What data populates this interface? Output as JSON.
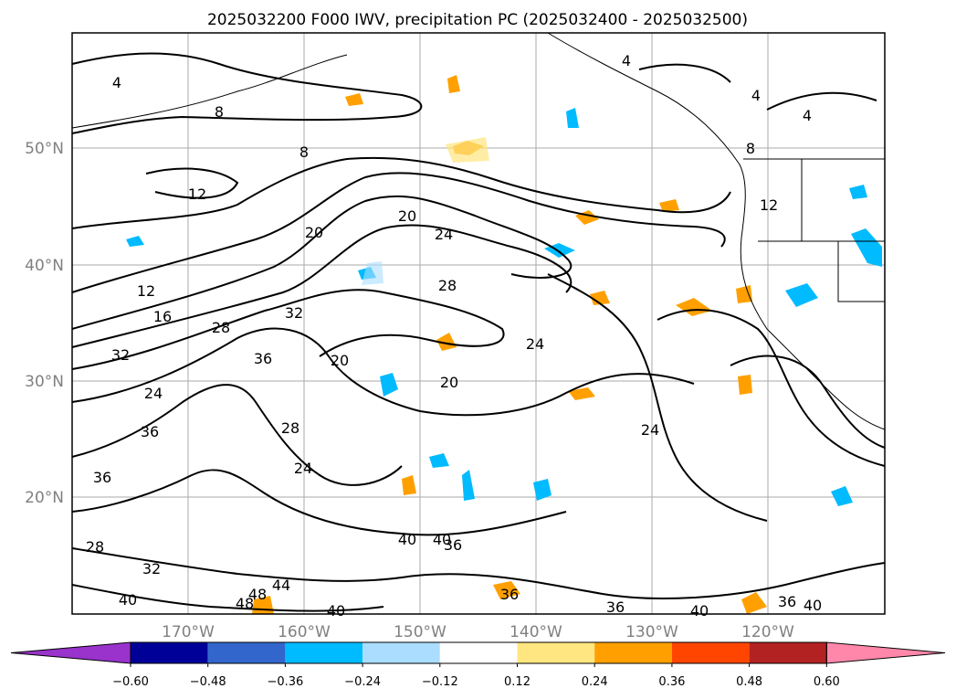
{
  "title": "2025032200 F000 IWV, precipitation PC (2025032400 - 2025032500)",
  "map": {
    "lon_labels": [
      "170°W",
      "160°W",
      "150°W",
      "140°W",
      "130°W",
      "120°W"
    ],
    "lat_labels": [
      "50°N",
      "40°N",
      "30°N",
      "20°N"
    ],
    "contour_labels": [
      "4",
      "4",
      "4",
      "4",
      "8",
      "8",
      "8",
      "12",
      "12",
      "12",
      "16",
      "20",
      "20",
      "20",
      "20",
      "24",
      "24",
      "24",
      "24",
      "24",
      "28",
      "28",
      "28",
      "28",
      "32",
      "32",
      "32",
      "36",
      "36",
      "36",
      "36",
      "36",
      "36",
      "36",
      "40",
      "40",
      "40",
      "40",
      "40",
      "40",
      "44",
      "48",
      "48"
    ],
    "colors": {
      "grid": "#aaaaaa",
      "contour": "#000000",
      "coast": "#000000"
    }
  },
  "colorbar": {
    "colors": [
      "#9933cc",
      "#000099",
      "#3366cc",
      "#00bbff",
      "#aaddff",
      "#ffffff",
      "#ffe680",
      "#ffa000",
      "#ff4500",
      "#b22222",
      "#ff88aa"
    ],
    "ticks": [
      "−0.60",
      "−0.48",
      "−0.36",
      "−0.24",
      "−0.12",
      "0.12",
      "0.24",
      "0.36",
      "0.48",
      "0.60"
    ]
  }
}
